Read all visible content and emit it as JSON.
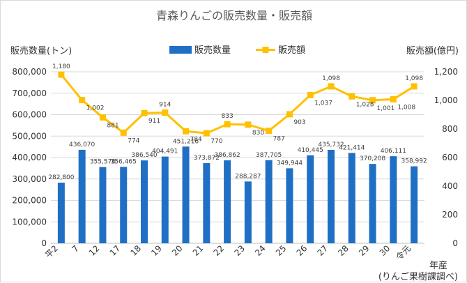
{
  "chart_data": {
    "type": "bar+line",
    "title": "青森りんごの販売数量・販売額",
    "y_left_label": "販売数量(トン)",
    "y_right_label": "販売額(億円)",
    "x_label": "年産",
    "source_note": "(りんご果樹課調べ)",
    "categories": [
      "平2",
      "7",
      "12",
      "17",
      "18",
      "19",
      "20",
      "21",
      "22",
      "23",
      "24",
      "25",
      "26",
      "27",
      "28",
      "29",
      "30",
      "令元"
    ],
    "series": [
      {
        "name": "販売数量",
        "type": "bar",
        "axis": "left",
        "color": "#1f6fc5",
        "values": [
          282800,
          436070,
          355576,
          356465,
          386540,
          404491,
          451216,
          373872,
          386862,
          288287,
          387705,
          349944,
          410445,
          435732,
          421414,
          370208,
          406111,
          358992
        ],
        "labels": [
          "282,800",
          "436,070",
          "355,576",
          "356,465",
          "386,540",
          "404,491",
          "451,216",
          "373,872",
          "386,862",
          "288,287",
          "387,705",
          "349,944",
          "410,445",
          "435,732",
          "421,414",
          "370,208",
          "406,111",
          "358,992"
        ]
      },
      {
        "name": "販売額",
        "type": "line",
        "axis": "right",
        "color": "#ffc000",
        "values": [
          1180,
          1002,
          881,
          774,
          911,
          914,
          784,
          770,
          833,
          830,
          787,
          903,
          1037,
          1098,
          1028,
          1001,
          1008,
          1098
        ],
        "labels": [
          "1,180",
          "1,002",
          "881",
          "774",
          "911",
          "914",
          "784",
          "770",
          "833",
          "830",
          "787",
          "903",
          "1,037",
          "1,098",
          "1,028",
          "1,001",
          "1,008",
          "1,098"
        ]
      }
    ],
    "y_left": {
      "min": 0,
      "max": 800000,
      "step": 100000,
      "ticks": [
        "0",
        "100,000",
        "200,000",
        "300,000",
        "400,000",
        "500,000",
        "600,000",
        "700,000",
        "800,000"
      ]
    },
    "y_right": {
      "min": 0,
      "max": 1200,
      "step": 200,
      "ticks": [
        "0",
        "200",
        "400",
        "600",
        "800",
        "1,000",
        "1,200"
      ]
    },
    "grid": true,
    "legend_position": "top-center"
  }
}
